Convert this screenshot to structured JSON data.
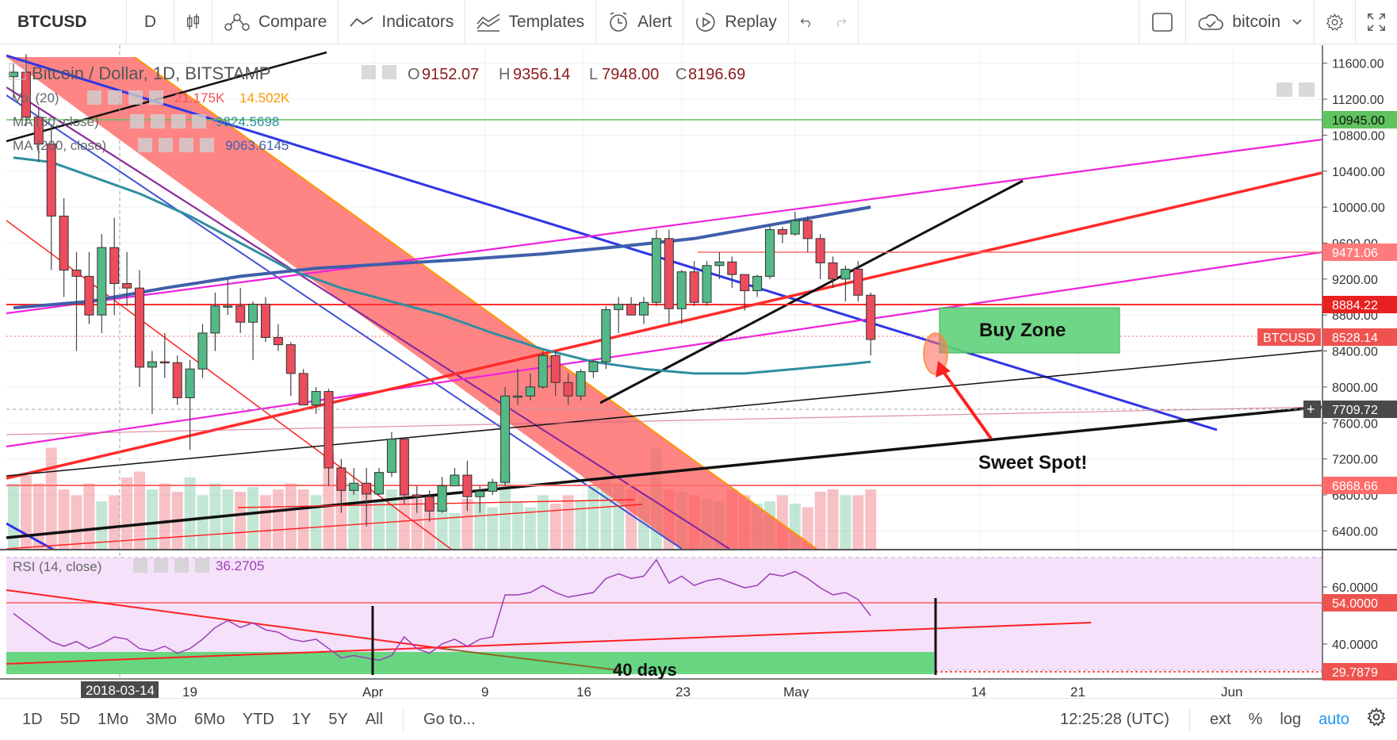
{
  "toolbar": {
    "symbol": "BTCUSD",
    "interval": "D",
    "compare": "Compare",
    "indicators": "Indicators",
    "templates": "Templates",
    "alert": "Alert",
    "replay": "Replay",
    "user": "bitcoin"
  },
  "legend": {
    "title": "Bitcoin / Dollar, 1D, BITSTAMP",
    "open_label": "O",
    "open": "9152.07",
    "high_label": "H",
    "high": "9356.14",
    "low_label": "L",
    "low": "7948.00",
    "close_label": "C",
    "close": "8196.69",
    "vol_label": "Vol (20)",
    "vol1": "21.175K",
    "vol2": "14.502K",
    "ma50_label": "MA (50, close)",
    "ma50": "9824.5698",
    "ma200_label": "MA (200, close)",
    "ma200": "9063.6145",
    "rsi_label": "RSI (14, close)",
    "rsi": "36.2705"
  },
  "annotations": {
    "buy_zone": "Buy Zone",
    "sweet_spot": "Sweet Spot!",
    "days": "40 days"
  },
  "price_axis": {
    "ticks": [
      "11600.00",
      "11200.00",
      "10800.00",
      "10400.00",
      "10000.00",
      "9600.00",
      "9200.00",
      "8800.00",
      "8400.00",
      "8000.00",
      "7600.00",
      "7200.00",
      "6800.00",
      "6400.00"
    ],
    "tag_10945": "10945.00",
    "tag_9471": "9471.06",
    "tag_8884": "8884.22",
    "tag_symbol": "BTCUSD",
    "tag_price": "8528.14",
    "tag_cross": "7709.72",
    "tag_6868": "6868.66"
  },
  "rsi_axis": {
    "ticks": [
      "60.0000",
      "40.0000"
    ],
    "tag_54": "54.0000",
    "tag_29": "29.7879"
  },
  "time_axis": {
    "cursor_date": "2018-03-14",
    "labels": [
      "19",
      "Apr",
      "9",
      "16",
      "23",
      "May",
      "14",
      "21",
      "Jun"
    ]
  },
  "bottom": {
    "ranges": [
      "1D",
      "5D",
      "1Mo",
      "3Mo",
      "6Mo",
      "YTD",
      "1Y",
      "5Y",
      "All"
    ],
    "goto": "Go to...",
    "clock": "12:25:28 (UTC)",
    "ext": "ext",
    "percent": "%",
    "log": "log",
    "auto": "auto"
  },
  "colors": {
    "up": "#53b987",
    "down": "#eb4d5c",
    "ma50": "#2f8ea0",
    "ma200": "#3f5faa",
    "rsi_band": "#f5e1fa",
    "buy_zone": "#5fd27a"
  },
  "chart_data": {
    "type": "candlestick",
    "title": "Bitcoin / Dollar, 1D, BITSTAMP",
    "ylim": [
      6200,
      11800
    ],
    "rsi_ylim": [
      20,
      75
    ],
    "x_start": "2018-03-04",
    "candles": [
      {
        "d": "2018-03-04",
        "o": 11450,
        "h": 11600,
        "l": 11200,
        "c": 11500
      },
      {
        "d": "2018-03-05",
        "o": 11500,
        "h": 11700,
        "l": 10900,
        "c": 11000
      },
      {
        "d": "2018-03-06",
        "o": 11000,
        "h": 11100,
        "l": 10500,
        "c": 10700
      },
      {
        "d": "2018-03-07",
        "o": 10700,
        "h": 10900,
        "l": 9300,
        "c": 9900
      },
      {
        "d": "2018-03-08",
        "o": 9900,
        "h": 10100,
        "l": 9000,
        "c": 9300
      },
      {
        "d": "2018-03-09",
        "o": 9300,
        "h": 9500,
        "l": 8400,
        "c": 9230
      },
      {
        "d": "2018-03-10",
        "o": 9230,
        "h": 9500,
        "l": 8700,
        "c": 8800
      },
      {
        "d": "2018-03-11",
        "o": 8800,
        "h": 9700,
        "l": 8600,
        "c": 9550
      },
      {
        "d": "2018-03-12",
        "o": 9550,
        "h": 9880,
        "l": 8800,
        "c": 9150
      },
      {
        "d": "2018-03-13",
        "o": 9150,
        "h": 9500,
        "l": 8900,
        "c": 9100
      },
      {
        "d": "2018-03-14",
        "o": 9100,
        "h": 9300,
        "l": 8000,
        "c": 8220
      },
      {
        "d": "2018-03-15",
        "o": 8220,
        "h": 8400,
        "l": 7700,
        "c": 8280
      },
      {
        "d": "2018-03-16",
        "o": 8280,
        "h": 8600,
        "l": 8100,
        "c": 8270
      },
      {
        "d": "2018-03-17",
        "o": 8270,
        "h": 8350,
        "l": 7800,
        "c": 7880
      },
      {
        "d": "2018-03-18",
        "o": 7880,
        "h": 8300,
        "l": 7300,
        "c": 8200
      },
      {
        "d": "2018-03-19",
        "o": 8200,
        "h": 8700,
        "l": 8100,
        "c": 8600
      },
      {
        "d": "2018-03-20",
        "o": 8600,
        "h": 9050,
        "l": 8400,
        "c": 8900
      },
      {
        "d": "2018-03-21",
        "o": 8900,
        "h": 9200,
        "l": 8800,
        "c": 8900
      },
      {
        "d": "2018-03-22",
        "o": 8900,
        "h": 9100,
        "l": 8600,
        "c": 8720
      },
      {
        "d": "2018-03-23",
        "o": 8720,
        "h": 8950,
        "l": 8300,
        "c": 8920
      },
      {
        "d": "2018-03-24",
        "o": 8920,
        "h": 9000,
        "l": 8500,
        "c": 8550
      },
      {
        "d": "2018-03-25",
        "o": 8550,
        "h": 8700,
        "l": 8400,
        "c": 8470
      },
      {
        "d": "2018-03-26",
        "o": 8470,
        "h": 8500,
        "l": 7900,
        "c": 8150
      },
      {
        "d": "2018-03-27",
        "o": 8150,
        "h": 8200,
        "l": 7800,
        "c": 7800
      },
      {
        "d": "2018-03-28",
        "o": 7800,
        "h": 8000,
        "l": 7700,
        "c": 7950
      },
      {
        "d": "2018-03-29",
        "o": 7950,
        "h": 7980,
        "l": 6900,
        "c": 7100
      },
      {
        "d": "2018-03-30",
        "o": 7100,
        "h": 7200,
        "l": 6600,
        "c": 6850
      },
      {
        "d": "2018-03-31",
        "o": 6850,
        "h": 7100,
        "l": 6800,
        "c": 6930
      },
      {
        "d": "2018-04-01",
        "o": 6930,
        "h": 7100,
        "l": 6450,
        "c": 6810
      },
      {
        "d": "2018-04-02",
        "o": 6810,
        "h": 7100,
        "l": 6800,
        "c": 7050
      },
      {
        "d": "2018-04-03",
        "o": 7050,
        "h": 7500,
        "l": 7000,
        "c": 7420
      },
      {
        "d": "2018-04-04",
        "o": 7420,
        "h": 7430,
        "l": 6700,
        "c": 6800
      },
      {
        "d": "2018-04-05",
        "o": 6800,
        "h": 6900,
        "l": 6600,
        "c": 6780
      },
      {
        "d": "2018-04-06",
        "o": 6780,
        "h": 6850,
        "l": 6500,
        "c": 6620
      },
      {
        "d": "2018-04-07",
        "o": 6620,
        "h": 7000,
        "l": 6600,
        "c": 6900
      },
      {
        "d": "2018-04-08",
        "o": 6900,
        "h": 7100,
        "l": 6900,
        "c": 7020
      },
      {
        "d": "2018-04-09",
        "o": 7020,
        "h": 7180,
        "l": 6620,
        "c": 6780
      },
      {
        "d": "2018-04-10",
        "o": 6780,
        "h": 6900,
        "l": 6600,
        "c": 6840
      },
      {
        "d": "2018-04-11",
        "o": 6840,
        "h": 6980,
        "l": 6800,
        "c": 6940
      },
      {
        "d": "2018-04-12",
        "o": 6940,
        "h": 8000,
        "l": 6900,
        "c": 7900
      },
      {
        "d": "2018-04-13",
        "o": 7900,
        "h": 8200,
        "l": 7800,
        "c": 7900
      },
      {
        "d": "2018-04-14",
        "o": 7900,
        "h": 8150,
        "l": 7850,
        "c": 8000
      },
      {
        "d": "2018-04-15",
        "o": 8000,
        "h": 8400,
        "l": 7980,
        "c": 8350
      },
      {
        "d": "2018-04-16",
        "o": 8350,
        "h": 8400,
        "l": 7900,
        "c": 8050
      },
      {
        "d": "2018-04-17",
        "o": 8050,
        "h": 8150,
        "l": 7800,
        "c": 7900
      },
      {
        "d": "2018-04-18",
        "o": 7900,
        "h": 8200,
        "l": 7850,
        "c": 8170
      },
      {
        "d": "2018-04-19",
        "o": 8170,
        "h": 8300,
        "l": 8100,
        "c": 8280
      },
      {
        "d": "2018-04-20",
        "o": 8280,
        "h": 8900,
        "l": 8200,
        "c": 8860
      },
      {
        "d": "2018-04-21",
        "o": 8860,
        "h": 9000,
        "l": 8600,
        "c": 8920
      },
      {
        "d": "2018-04-22",
        "o": 8920,
        "h": 9000,
        "l": 8800,
        "c": 8800
      },
      {
        "d": "2018-04-23",
        "o": 8800,
        "h": 9000,
        "l": 8700,
        "c": 8940
      },
      {
        "d": "2018-04-24",
        "o": 8940,
        "h": 9750,
        "l": 8900,
        "c": 9650
      },
      {
        "d": "2018-04-25",
        "o": 9650,
        "h": 9750,
        "l": 8700,
        "c": 8870
      },
      {
        "d": "2018-04-26",
        "o": 8870,
        "h": 9300,
        "l": 8700,
        "c": 9280
      },
      {
        "d": "2018-04-27",
        "o": 9280,
        "h": 9400,
        "l": 8900,
        "c": 8940
      },
      {
        "d": "2018-04-28",
        "o": 8940,
        "h": 9400,
        "l": 8900,
        "c": 9350
      },
      {
        "d": "2018-04-29",
        "o": 9350,
        "h": 9500,
        "l": 9200,
        "c": 9390
      },
      {
        "d": "2018-04-30",
        "o": 9390,
        "h": 9450,
        "l": 9100,
        "c": 9250
      },
      {
        "d": "2018-05-01",
        "o": 9250,
        "h": 9250,
        "l": 8850,
        "c": 9070
      },
      {
        "d": "2018-05-02",
        "o": 9070,
        "h": 9250,
        "l": 9000,
        "c": 9230
      },
      {
        "d": "2018-05-03",
        "o": 9230,
        "h": 9800,
        "l": 9200,
        "c": 9750
      },
      {
        "d": "2018-05-04",
        "o": 9750,
        "h": 9780,
        "l": 9600,
        "c": 9700
      },
      {
        "d": "2018-05-05",
        "o": 9700,
        "h": 9950,
        "l": 9680,
        "c": 9850
      },
      {
        "d": "2018-05-06",
        "o": 9850,
        "h": 9900,
        "l": 9500,
        "c": 9650
      },
      {
        "d": "2018-05-07",
        "o": 9650,
        "h": 9700,
        "l": 9200,
        "c": 9380
      },
      {
        "d": "2018-05-08",
        "o": 9380,
        "h": 9450,
        "l": 9100,
        "c": 9200
      },
      {
        "d": "2018-05-09",
        "o": 9200,
        "h": 9350,
        "l": 8950,
        "c": 9310
      },
      {
        "d": "2018-05-10",
        "o": 9310,
        "h": 9400,
        "l": 8950,
        "c": 9020
      },
      {
        "d": "2018-05-11",
        "o": 9020,
        "h": 9050,
        "l": 8350,
        "c": 8528.14
      }
    ],
    "ma50": [
      [
        0,
        10550
      ],
      [
        3,
        10500
      ],
      [
        6,
        10350
      ],
      [
        10,
        10150
      ],
      [
        14,
        9900
      ],
      [
        18,
        9600
      ],
      [
        22,
        9300
      ],
      [
        26,
        9100
      ],
      [
        30,
        8950
      ],
      [
        34,
        8800
      ],
      [
        38,
        8600
      ],
      [
        42,
        8420
      ],
      [
        46,
        8280
      ],
      [
        50,
        8200
      ],
      [
        54,
        8150
      ],
      [
        58,
        8150
      ],
      [
        62,
        8200
      ],
      [
        66,
        8250
      ],
      [
        68,
        8280
      ]
    ],
    "ma200": [
      [
        0,
        8880
      ],
      [
        6,
        8950
      ],
      [
        12,
        9100
      ],
      [
        18,
        9230
      ],
      [
        24,
        9320
      ],
      [
        30,
        9370
      ],
      [
        36,
        9420
      ],
      [
        42,
        9480
      ],
      [
        48,
        9560
      ],
      [
        54,
        9650
      ],
      [
        60,
        9800
      ],
      [
        66,
        9950
      ],
      [
        68,
        10000
      ]
    ],
    "rsi": [
      [
        0,
        48
      ],
      [
        1,
        44
      ],
      [
        2,
        40
      ],
      [
        3,
        36
      ],
      [
        4,
        34
      ],
      [
        5,
        36
      ],
      [
        6,
        33
      ],
      [
        7,
        35
      ],
      [
        8,
        38
      ],
      [
        9,
        37
      ],
      [
        10,
        33
      ],
      [
        11,
        32
      ],
      [
        12,
        34
      ],
      [
        13,
        31
      ],
      [
        14,
        33
      ],
      [
        15,
        37
      ],
      [
        16,
        42
      ],
      [
        17,
        45
      ],
      [
        18,
        42
      ],
      [
        19,
        44
      ],
      [
        20,
        41
      ],
      [
        21,
        40
      ],
      [
        22,
        37
      ],
      [
        23,
        36
      ],
      [
        24,
        37
      ],
      [
        25,
        33
      ],
      [
        26,
        29
      ],
      [
        27,
        30
      ],
      [
        28,
        29
      ],
      [
        29,
        28
      ],
      [
        30,
        30
      ],
      [
        31,
        38
      ],
      [
        32,
        33
      ],
      [
        33,
        31
      ],
      [
        34,
        35
      ],
      [
        35,
        37
      ],
      [
        36,
        34
      ],
      [
        37,
        37
      ],
      [
        38,
        38
      ],
      [
        39,
        56
      ],
      [
        40,
        56
      ],
      [
        41,
        57
      ],
      [
        42,
        60
      ],
      [
        43,
        57
      ],
      [
        44,
        55
      ],
      [
        45,
        56
      ],
      [
        46,
        57
      ],
      [
        47,
        63
      ],
      [
        48,
        65
      ],
      [
        49,
        63
      ],
      [
        50,
        64
      ],
      [
        51,
        71
      ],
      [
        52,
        61
      ],
      [
        53,
        64
      ],
      [
        54,
        60
      ],
      [
        55,
        62
      ],
      [
        56,
        63
      ],
      [
        57,
        61
      ],
      [
        58,
        59
      ],
      [
        59,
        60
      ],
      [
        60,
        65
      ],
      [
        61,
        64
      ],
      [
        62,
        66
      ],
      [
        63,
        63
      ],
      [
        64,
        59
      ],
      [
        65,
        56
      ],
      [
        66,
        57
      ],
      [
        67,
        54
      ],
      [
        68,
        47
      ]
    ],
    "volume": [
      0.55,
      0.62,
      0.55,
      0.85,
      0.5,
      0.45,
      0.55,
      0.4,
      0.45,
      0.6,
      0.65,
      0.5,
      0.55,
      0.48,
      0.6,
      0.45,
      0.55,
      0.5,
      0.48,
      0.52,
      0.45,
      0.5,
      0.55,
      0.5,
      0.45,
      0.8,
      0.6,
      0.55,
      0.52,
      0.4,
      0.5,
      0.45,
      0.42,
      0.38,
      0.35,
      0.3,
      0.42,
      0.38,
      0.35,
      0.65,
      0.4,
      0.35,
      0.45,
      0.38,
      0.45,
      0.4,
      0.52,
      0.6,
      0.55,
      0.5,
      0.45,
      0.85,
      0.5,
      0.48,
      0.45,
      0.42,
      0.4,
      0.5,
      0.45,
      0.38,
      0.4,
      0.45,
      0.38,
      0.35,
      0.48,
      0.5,
      0.45,
      0.45,
      0.5
    ]
  }
}
